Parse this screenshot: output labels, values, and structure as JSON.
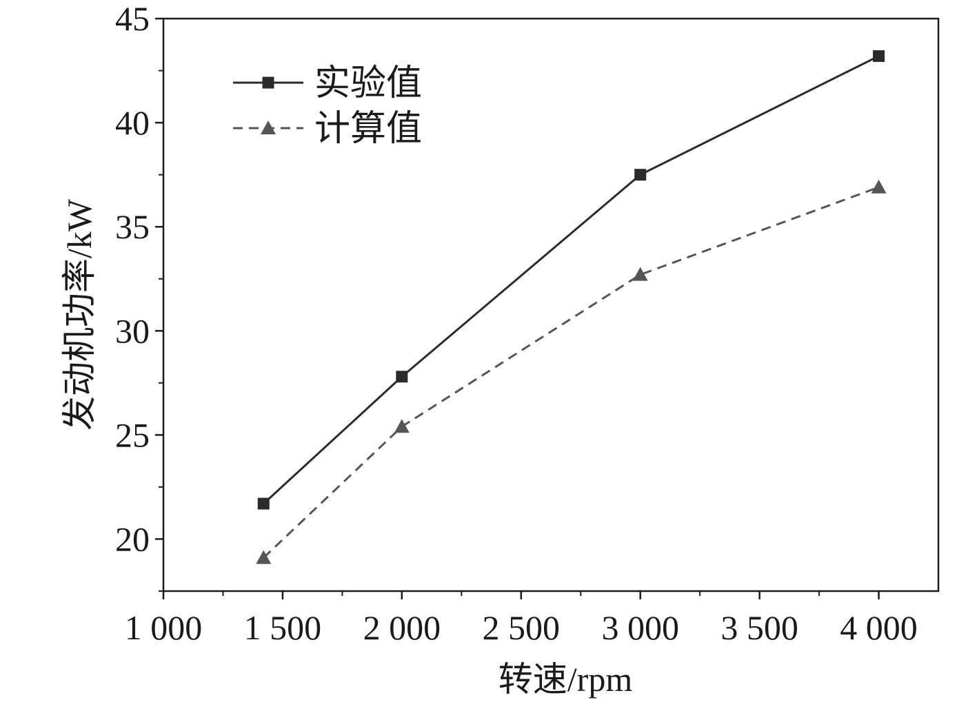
{
  "chart_data": {
    "type": "line",
    "xlabel": "转速/rpm",
    "ylabel": "发动机功率/kW",
    "xlim": [
      1000,
      4250
    ],
    "ylim": [
      17.5,
      45
    ],
    "x_ticks": [
      1000,
      1500,
      2000,
      2500,
      3000,
      3500,
      4000
    ],
    "x_tick_labels": [
      "1 000",
      "1 500",
      "2 000",
      "2 500",
      "3 000",
      "3 500",
      "4 000"
    ],
    "y_ticks": [
      20,
      25,
      30,
      35,
      40,
      45
    ],
    "y_tick_labels": [
      "20",
      "25",
      "30",
      "35",
      "40",
      "45"
    ],
    "grid": false,
    "legend_position": "top-left",
    "series": [
      {
        "name": "实验值",
        "marker": "square",
        "line_style": "solid",
        "color": "#2b2b2b",
        "x": [
          1420,
          2000,
          3000,
          4000
        ],
        "y": [
          21.7,
          27.8,
          37.5,
          43.2
        ]
      },
      {
        "name": "计算值",
        "marker": "triangle",
        "line_style": "dashed",
        "color": "#555555",
        "x": [
          1420,
          2000,
          3000,
          4000
        ],
        "y": [
          19.1,
          25.4,
          32.7,
          36.9
        ]
      }
    ]
  }
}
